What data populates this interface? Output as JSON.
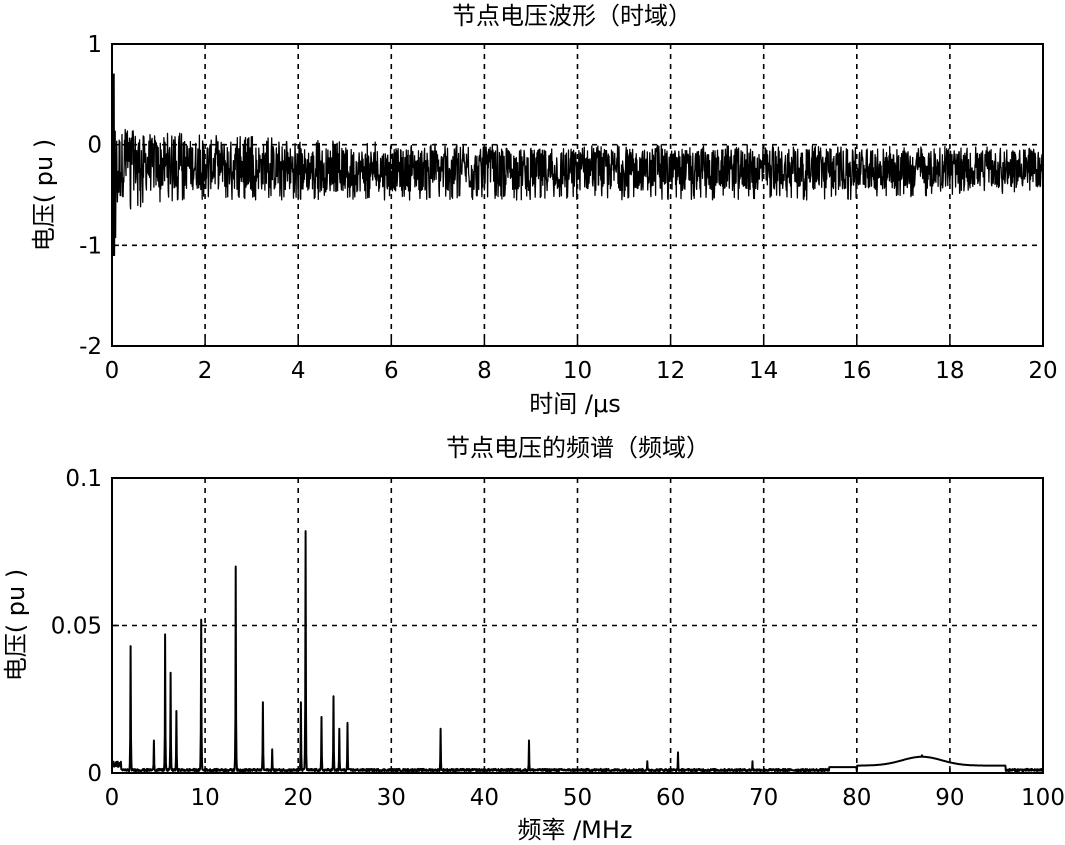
{
  "chart_data": [
    {
      "type": "line",
      "title": "节点电压波形（时域）",
      "xlabel": "时间 /μs",
      "ylabel": "电压( pu )",
      "xlim": [
        0,
        20
      ],
      "ylim": [
        -2,
        1
      ],
      "xticks": [
        "0",
        "2",
        "4",
        "6",
        "8",
        "10",
        "12",
        "14",
        "16",
        "18",
        "20"
      ],
      "yticks": [
        "-2",
        "-1",
        "0",
        "1"
      ],
      "grid": true,
      "series": [
        {
          "style": "dense noisy oscillation with transient decay",
          "x": [
            0,
            0.05,
            0.1,
            0.2,
            0.4,
            0.8,
            1.5,
            2.5,
            4,
            6,
            8,
            10,
            12,
            14,
            16,
            18,
            20
          ],
          "center": [
            0.6,
            -0.2,
            -0.3,
            -0.2,
            -0.15,
            -0.2,
            -0.2,
            -0.2,
            -0.25,
            -0.25,
            -0.25,
            -0.25,
            -0.25,
            -0.25,
            -0.25,
            -0.25,
            -0.25
          ],
          "spread_high": [
            0.7,
            0.6,
            0.3,
            0.2,
            0.15,
            0.12,
            0.12,
            0.1,
            0.05,
            0.02,
            0,
            0,
            0,
            0,
            -0.02,
            -0.02,
            -0.03
          ],
          "spread_low": [
            -1.1,
            -1.0,
            -0.9,
            -0.7,
            -0.65,
            -0.6,
            -0.55,
            -0.55,
            -0.55,
            -0.55,
            -0.55,
            -0.55,
            -0.55,
            -0.55,
            -0.55,
            -0.5,
            -0.5
          ]
        }
      ]
    },
    {
      "type": "line",
      "title": "节点电压的频谱（频域）",
      "xlabel": "频率 /MHz",
      "ylabel": "电压( pu )",
      "xlim": [
        0,
        100
      ],
      "ylim": [
        0,
        0.1
      ],
      "xticks": [
        "0",
        "10",
        "20",
        "30",
        "40",
        "50",
        "60",
        "70",
        "80",
        "90",
        "100"
      ],
      "yticks": [
        "0",
        "0.05",
        "0.1"
      ],
      "grid": true,
      "series": [
        {
          "peaks": [
            {
              "x": 2.0,
              "y": 0.043
            },
            {
              "x": 4.5,
              "y": 0.011
            },
            {
              "x": 5.7,
              "y": 0.047
            },
            {
              "x": 6.3,
              "y": 0.034
            },
            {
              "x": 6.9,
              "y": 0.021
            },
            {
              "x": 9.6,
              "y": 0.052
            },
            {
              "x": 13.3,
              "y": 0.07
            },
            {
              "x": 16.2,
              "y": 0.024
            },
            {
              "x": 17.2,
              "y": 0.008
            },
            {
              "x": 20.3,
              "y": 0.024
            },
            {
              "x": 20.8,
              "y": 0.082
            },
            {
              "x": 22.5,
              "y": 0.019
            },
            {
              "x": 23.8,
              "y": 0.026
            },
            {
              "x": 24.4,
              "y": 0.015
            },
            {
              "x": 25.3,
              "y": 0.017
            },
            {
              "x": 35.3,
              "y": 0.015
            },
            {
              "x": 44.8,
              "y": 0.011
            },
            {
              "x": 57.5,
              "y": 0.004
            },
            {
              "x": 60.8,
              "y": 0.007
            },
            {
              "x": 68.8,
              "y": 0.004
            },
            {
              "x": 87.0,
              "y": 0.006
            }
          ],
          "floor": 0.001
        }
      ]
    }
  ]
}
